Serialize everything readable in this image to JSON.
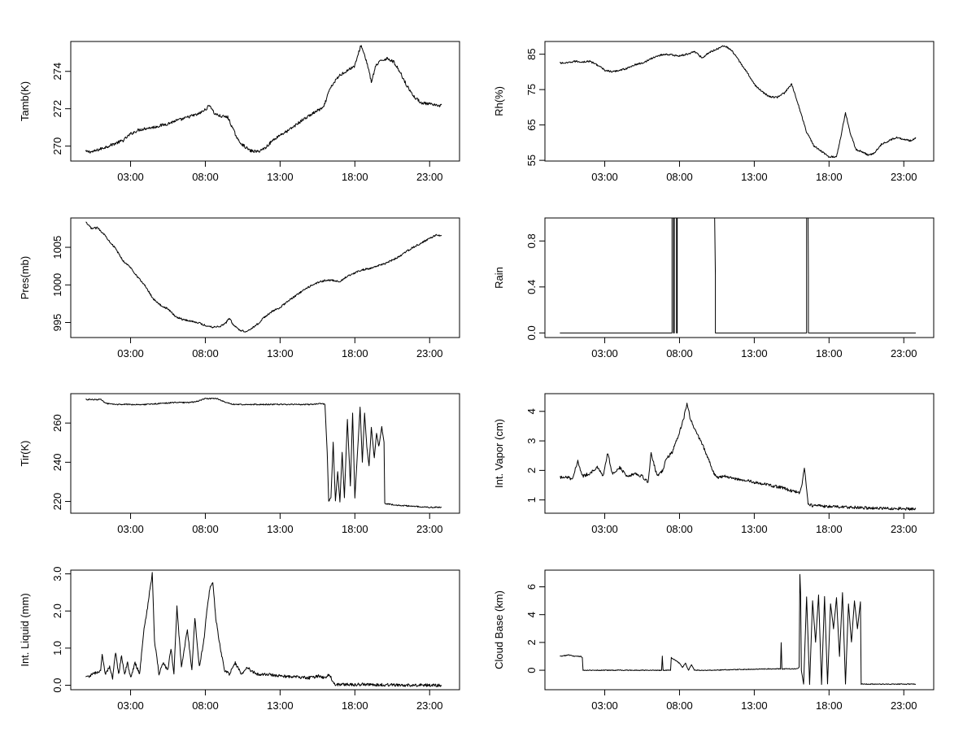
{
  "chart_data": [
    {
      "type": "line",
      "ylabel": "Tamb(K)",
      "xlim": [
        -1.0,
        25.0
      ],
      "ylim": [
        269.2,
        275.6
      ],
      "xticks": [
        3,
        8,
        13,
        18,
        23
      ],
      "xtick_labels": [
        "03:00",
        "08:00",
        "13:00",
        "18:00",
        "23:00"
      ],
      "yticks": [
        270,
        272,
        274
      ],
      "ytick_labels": [
        "270",
        "272",
        "274"
      ],
      "noise": 0.08,
      "series": [
        {
          "x": [
            0,
            0.5,
            1.0,
            1.5,
            2.0,
            2.5,
            3.0,
            3.5,
            4.0,
            4.5,
            5.0,
            5.5,
            6.0,
            6.5,
            7.0,
            7.5,
            8.0,
            8.3,
            8.6,
            9.0,
            9.5,
            9.8,
            10.2,
            10.6,
            11.0,
            11.5,
            12.0,
            12.5,
            13.0,
            13.5,
            14.0,
            14.5,
            15.0,
            15.5,
            15.9,
            16.3,
            16.6,
            17.0,
            17.5,
            18.0,
            18.4,
            18.6,
            18.9,
            19.1,
            19.4,
            19.8,
            20.2,
            20.6,
            21.0,
            21.5,
            22.0,
            22.5,
            23.0,
            23.5,
            23.8
          ],
          "y": [
            269.7,
            269.7,
            269.85,
            270.0,
            270.15,
            270.3,
            270.65,
            270.85,
            270.95,
            271.0,
            271.1,
            271.2,
            271.35,
            271.45,
            271.6,
            271.7,
            271.95,
            272.2,
            271.75,
            271.6,
            271.55,
            271.0,
            270.3,
            270.0,
            269.75,
            269.7,
            269.9,
            270.3,
            270.6,
            270.8,
            271.1,
            271.4,
            271.65,
            271.9,
            272.05,
            273.0,
            273.4,
            273.8,
            274.05,
            274.3,
            275.4,
            275.0,
            274.2,
            273.4,
            274.3,
            274.6,
            274.7,
            274.5,
            274.0,
            273.2,
            272.6,
            272.3,
            272.25,
            272.15,
            272.2
          ]
        }
      ]
    },
    {
      "type": "line",
      "ylabel": "Rh(%)",
      "xlim": [
        -1.0,
        25.0
      ],
      "ylim": [
        54.8,
        88.6
      ],
      "xticks": [
        3,
        8,
        13,
        18,
        23
      ],
      "xtick_labels": [
        "03:00",
        "08:00",
        "13:00",
        "18:00",
        "23:00"
      ],
      "yticks": [
        55,
        65,
        75,
        85
      ],
      "ytick_labels": [
        "55",
        "65",
        "75",
        "85"
      ],
      "noise": 0.25,
      "series": [
        {
          "x": [
            0,
            0.5,
            1.0,
            1.5,
            2.0,
            2.5,
            3.0,
            3.5,
            4.0,
            4.5,
            5.0,
            5.5,
            6.0,
            6.5,
            7.0,
            7.5,
            8.0,
            8.5,
            9.0,
            9.5,
            10.0,
            10.5,
            11.0,
            11.5,
            12.0,
            12.5,
            13.0,
            13.5,
            14.0,
            14.5,
            15.0,
            15.5,
            16.0,
            16.5,
            17.0,
            17.5,
            18.0,
            18.5,
            18.8,
            19.1,
            19.4,
            19.8,
            20.2,
            20.6,
            21.0,
            21.5,
            22.0,
            22.5,
            23.0,
            23.5,
            23.8
          ],
          "y": [
            82.5,
            82.5,
            83.0,
            82.8,
            83.0,
            82.0,
            80.5,
            80.0,
            80.5,
            81.0,
            82.0,
            82.5,
            83.5,
            84.5,
            85.0,
            84.8,
            84.5,
            85.0,
            85.8,
            84.0,
            85.5,
            86.5,
            87.5,
            86.0,
            83.0,
            80.0,
            76.5,
            74.5,
            73.0,
            72.8,
            74.0,
            76.5,
            70.0,
            63.0,
            59.0,
            57.5,
            56.0,
            56.0,
            62.0,
            68.5,
            63.0,
            58.0,
            57.5,
            56.5,
            57.0,
            59.5,
            60.5,
            61.5,
            61.0,
            60.5,
            61.5
          ]
        }
      ]
    },
    {
      "type": "line",
      "ylabel": "Pres(mb)",
      "xlim": [
        -1.0,
        25.0
      ],
      "ylim": [
        993.0,
        1008.9
      ],
      "xticks": [
        3,
        8,
        13,
        18,
        23
      ],
      "xtick_labels": [
        "03:00",
        "08:00",
        "13:00",
        "18:00",
        "23:00"
      ],
      "yticks": [
        995,
        1000,
        1005
      ],
      "ytick_labels": [
        "995",
        "1000",
        "1005"
      ],
      "noise": 0.12,
      "series": [
        {
          "x": [
            0,
            0.4,
            0.8,
            1.2,
            1.6,
            2.0,
            2.5,
            3.0,
            3.5,
            4.0,
            4.5,
            5.0,
            5.5,
            6.0,
            6.5,
            7.0,
            7.5,
            8.0,
            8.5,
            9.0,
            9.4,
            9.6,
            9.9,
            10.3,
            10.7,
            11.0,
            11.5,
            12.0,
            12.5,
            13.0,
            13.5,
            14.0,
            14.5,
            15.0,
            15.5,
            16.0,
            16.5,
            17.0,
            17.5,
            18.0,
            18.5,
            19.0,
            19.5,
            20.0,
            20.5,
            21.0,
            21.5,
            22.0,
            22.5,
            23.0,
            23.4,
            23.8
          ],
          "y": [
            1008.3,
            1007.5,
            1007.6,
            1006.8,
            1005.8,
            1004.8,
            1003.2,
            1002.3,
            1001.0,
            999.8,
            998.2,
            997.3,
            996.8,
            995.8,
            995.4,
            995.2,
            995.0,
            994.6,
            994.4,
            994.5,
            995.0,
            995.6,
            994.6,
            994.0,
            993.8,
            994.1,
            994.8,
            995.8,
            996.5,
            997.0,
            997.8,
            998.5,
            999.2,
            999.8,
            1000.3,
            1000.6,
            1000.6,
            1000.4,
            1001.2,
            1001.6,
            1002.0,
            1002.2,
            1002.5,
            1002.8,
            1003.3,
            1003.8,
            1004.5,
            1005.1,
            1005.6,
            1006.2,
            1006.6,
            1006.6
          ]
        }
      ]
    },
    {
      "type": "line",
      "ylabel": "Rain",
      "xlim": [
        -1.0,
        25.0
      ],
      "ylim": [
        -0.04,
        1.0
      ],
      "xticks": [
        3,
        8,
        13,
        18,
        23
      ],
      "xtick_labels": [
        "03:00",
        "08:00",
        "13:00",
        "18:00",
        "23:00"
      ],
      "yticks": [
        0.0,
        0.4,
        0.8
      ],
      "ytick_labels": [
        "0.0",
        "0.4",
        "0.8"
      ],
      "noise": 0,
      "series": [
        {
          "x": [
            0,
            7.5,
            7.5,
            7.6,
            7.6,
            7.65,
            7.65,
            7.8,
            7.8,
            7.85,
            7.85,
            10.35,
            10.4,
            10.4,
            16.5,
            16.5,
            16.6,
            16.62,
            16.62,
            23.8
          ],
          "y": [
            0,
            0,
            1,
            1,
            0,
            0,
            1,
            1,
            0,
            0,
            1,
            1,
            0.5,
            0,
            0,
            1,
            1,
            0.5,
            0,
            0
          ]
        }
      ]
    },
    {
      "type": "line",
      "ylabel": "Tir(K)",
      "xlim": [
        -1.0,
        25.0
      ],
      "ylim": [
        214.0,
        275.0
      ],
      "xticks": [
        3,
        8,
        13,
        18,
        23
      ],
      "xtick_labels": [
        "03:00",
        "08:00",
        "13:00",
        "18:00",
        "23:00"
      ],
      "yticks": [
        220,
        240,
        260
      ],
      "ytick_labels": [
        "220",
        "240",
        "260"
      ],
      "noise": 0.3,
      "series": [
        {
          "x": [
            0,
            1.0,
            1.4,
            1.8,
            3.0,
            4.0,
            5.0,
            6.0,
            7.0,
            7.4,
            8.0,
            8.8,
            9.2,
            9.8,
            10.5,
            12.0,
            13.0,
            14.0,
            15.0,
            15.8,
            16.0,
            16.15,
            16.25,
            16.4,
            16.55,
            16.7,
            16.85,
            17.0,
            17.15,
            17.3,
            17.5,
            17.7,
            17.85,
            18.0,
            18.2,
            18.35,
            18.5,
            18.65,
            18.8,
            18.95,
            19.1,
            19.3,
            19.45,
            19.6,
            19.8,
            19.95,
            20.0,
            20.4,
            21.0,
            22.0,
            23.0,
            23.8
          ],
          "y": [
            272,
            272,
            270,
            269.5,
            269.5,
            269.5,
            270,
            270.5,
            270.5,
            271,
            272.5,
            272.5,
            271,
            269.5,
            269.5,
            269.5,
            269.5,
            269.5,
            269.5,
            270,
            269.5,
            245,
            220,
            222,
            250,
            220,
            235,
            220,
            245,
            222,
            262,
            228,
            265,
            222,
            248,
            268,
            240,
            265,
            248,
            238,
            258,
            242,
            255,
            248,
            258,
            250,
            219,
            218.5,
            218,
            217.5,
            217,
            217
          ]
        }
      ]
    },
    {
      "type": "line",
      "ylabel": "Int. Vapor (cm)",
      "xlim": [
        -1.0,
        25.0
      ],
      "ylim": [
        0.55,
        4.6
      ],
      "xticks": [
        3,
        8,
        13,
        18,
        23
      ],
      "xtick_labels": [
        "03:00",
        "08:00",
        "13:00",
        "18:00",
        "23:00"
      ],
      "yticks": [
        1,
        2,
        3,
        4
      ],
      "ytick_labels": [
        "1",
        "2",
        "3",
        "4"
      ],
      "noise": 0.05,
      "series": [
        {
          "x": [
            0,
            0.4,
            0.8,
            1.0,
            1.2,
            1.5,
            2.0,
            2.5,
            2.9,
            3.2,
            3.5,
            4.0,
            4.5,
            5.0,
            5.5,
            5.9,
            6.1,
            6.5,
            6.9,
            7.1,
            7.5,
            8.0,
            8.3,
            8.5,
            8.7,
            9.0,
            9.3,
            9.6,
            10.0,
            10.3,
            10.6,
            11.0,
            12.0,
            13.0,
            14.0,
            15.0,
            15.5,
            16.0,
            16.2,
            16.35,
            16.45,
            16.6,
            17.0,
            18.0,
            19.0,
            20.0,
            21.0,
            22.0,
            23.0,
            23.8
          ],
          "y": [
            1.75,
            1.8,
            1.7,
            2.0,
            2.3,
            1.8,
            1.9,
            2.1,
            1.8,
            2.6,
            1.9,
            2.1,
            1.8,
            1.9,
            1.8,
            1.6,
            2.6,
            1.8,
            2.0,
            2.4,
            2.6,
            3.3,
            3.8,
            4.3,
            3.8,
            3.4,
            3.1,
            2.8,
            2.3,
            1.9,
            1.75,
            1.8,
            1.7,
            1.6,
            1.5,
            1.4,
            1.3,
            1.25,
            1.5,
            2.1,
            1.6,
            0.85,
            0.8,
            0.78,
            0.76,
            0.74,
            0.72,
            0.71,
            0.7,
            0.7
          ]
        }
      ]
    },
    {
      "type": "line",
      "ylabel": "Int. Liquid (mm)",
      "xlim": [
        -1.0,
        25.0
      ],
      "ylim": [
        -0.12,
        3.1
      ],
      "xticks": [
        3,
        8,
        13,
        18,
        23
      ],
      "xtick_labels": [
        "03:00",
        "08:00",
        "13:00",
        "18:00",
        "23:00"
      ],
      "yticks": [
        0.0,
        1.0,
        2.0,
        3.0
      ],
      "ytick_labels": [
        "0.0",
        "1.0",
        "2.0",
        "3.0"
      ],
      "noise": 0.04,
      "series": [
        {
          "x": [
            0,
            0.5,
            1.0,
            1.1,
            1.3,
            1.6,
            1.8,
            2.0,
            2.2,
            2.4,
            2.6,
            2.8,
            3.0,
            3.3,
            3.6,
            3.9,
            4.1,
            4.3,
            4.45,
            4.6,
            4.9,
            5.2,
            5.5,
            5.7,
            5.9,
            6.1,
            6.4,
            6.8,
            7.1,
            7.3,
            7.6,
            7.9,
            8.1,
            8.3,
            8.5,
            8.7,
            9.0,
            9.3,
            9.6,
            10.0,
            10.4,
            10.8,
            11.0,
            11.5,
            12.0,
            13.0,
            14.0,
            15.0,
            15.6,
            16.0,
            16.3,
            16.6,
            17.0,
            18.0,
            18.5,
            19.0,
            20.0,
            22.0,
            23.8
          ],
          "y": [
            0.2,
            0.3,
            0.4,
            0.8,
            0.3,
            0.5,
            0.2,
            0.9,
            0.3,
            0.8,
            0.3,
            0.6,
            0.2,
            0.6,
            0.3,
            1.5,
            2.0,
            2.6,
            3.0,
            1.2,
            0.3,
            0.6,
            0.4,
            1.0,
            0.3,
            2.1,
            0.5,
            1.5,
            0.4,
            1.8,
            0.5,
            1.2,
            2.0,
            2.6,
            2.8,
            1.8,
            1.0,
            0.4,
            0.3,
            0.6,
            0.3,
            0.5,
            0.4,
            0.3,
            0.3,
            0.25,
            0.22,
            0.2,
            0.25,
            0.2,
            0.3,
            0.02,
            0.02,
            0.01,
            0.03,
            0.02,
            0.01,
            0.0,
            0.0
          ]
        }
      ]
    },
    {
      "type": "line",
      "ylabel": "Cloud Base (km)",
      "xlim": [
        -1.0,
        25.0
      ],
      "ylim": [
        -1.4,
        7.2
      ],
      "xticks": [
        3,
        8,
        13,
        18,
        23
      ],
      "xtick_labels": [
        "03:00",
        "08:00",
        "13:00",
        "18:00",
        "23:00"
      ],
      "yticks": [
        0,
        2,
        4,
        6
      ],
      "ytick_labels": [
        "0",
        "2",
        "4",
        "6"
      ],
      "noise": 0.03,
      "series": [
        {
          "x": [
            0,
            0.6,
            1.0,
            1.4,
            1.5,
            1.55,
            3.0,
            5.0,
            6.8,
            6.85,
            6.9,
            6.95,
            7.4,
            7.45,
            7.6,
            8.0,
            8.2,
            8.4,
            8.6,
            8.8,
            9.0,
            9.2,
            10.0,
            12.0,
            14.0,
            14.75,
            14.8,
            14.85,
            15.8,
            16.0,
            16.05,
            16.1,
            16.15,
            16.3,
            16.5,
            16.7,
            16.9,
            17.1,
            17.3,
            17.5,
            17.7,
            17.9,
            18.1,
            18.3,
            18.5,
            18.7,
            18.9,
            19.1,
            19.3,
            19.5,
            19.7,
            19.9,
            20.1,
            20.15,
            21.0,
            22.0,
            23.0,
            23.8
          ],
          "y": [
            1.0,
            1.1,
            1.0,
            1.0,
            0.9,
            0.0,
            0.0,
            0.0,
            0.0,
            1.0,
            0.0,
            0.0,
            0.0,
            0.9,
            0.8,
            0.5,
            0.2,
            0.5,
            0.0,
            0.4,
            0.0,
            0.0,
            0.0,
            0.05,
            0.1,
            0.1,
            2.0,
            0.1,
            0.1,
            0.2,
            6.9,
            5.5,
            0.0,
            -1.0,
            5.3,
            -1.0,
            5.0,
            2.0,
            5.4,
            -1.0,
            5.3,
            -1.0,
            4.8,
            3.0,
            5.2,
            1.0,
            5.6,
            -1.0,
            4.8,
            2.0,
            5.0,
            3.0,
            4.9,
            -1.0,
            -1.0,
            -1.0,
            -1.0,
            -1.0
          ]
        }
      ]
    }
  ]
}
